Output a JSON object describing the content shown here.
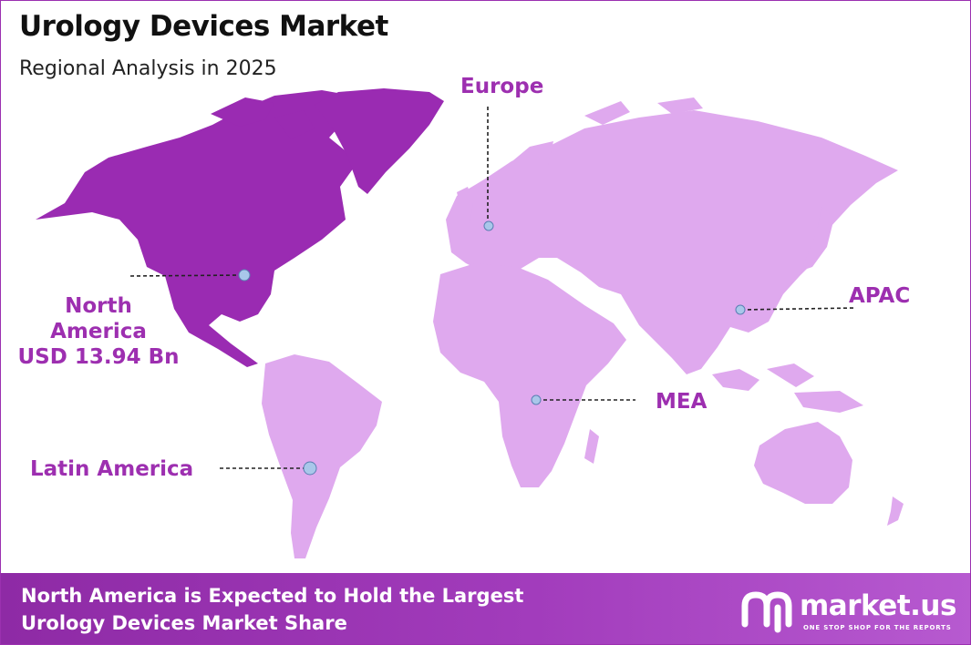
{
  "header": {
    "title": "Urology Devices Market",
    "subtitle": "Regional Analysis in 2025"
  },
  "regions": {
    "north_america": {
      "name": "North America",
      "value": "USD 13.94 Bn"
    },
    "europe": {
      "name": "Europe"
    },
    "apac": {
      "name": "APAC"
    },
    "mea": {
      "name": "MEA"
    },
    "latin_america": {
      "name": "Latin America"
    }
  },
  "banner": {
    "line1": "North America is Expected to Hold the Largest",
    "line2": "Urology Devices Market Share"
  },
  "brand": {
    "name": "market.us",
    "tagline": "ONE STOP SHOP FOR THE REPORTS"
  },
  "colors": {
    "highlight": "#9a2bb2",
    "land": "#dfa9ee",
    "label": "#9d2fb0",
    "marker": "#a9c7ea",
    "banner": "#9a32b4"
  }
}
